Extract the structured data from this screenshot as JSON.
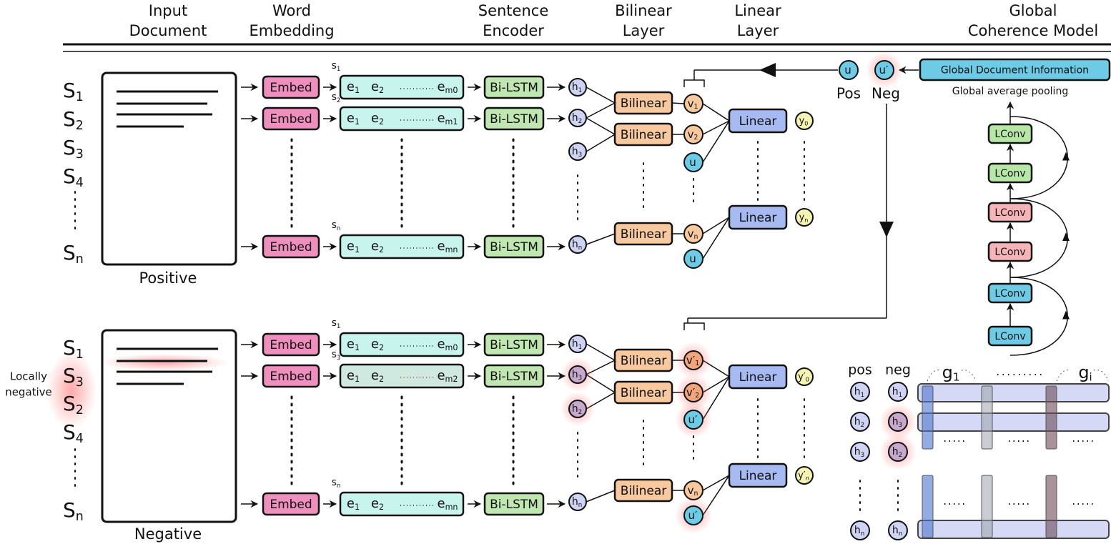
{
  "headers": [
    {
      "lines": [
        "Input",
        "Document"
      ]
    },
    {
      "lines": [
        "Word",
        "Embedding"
      ]
    },
    {
      "lines": [
        "Sentence",
        "Encoder"
      ]
    },
    {
      "lines": [
        "Bilinear",
        "Layer"
      ]
    },
    {
      "lines": [
        "Linear",
        "Layer"
      ]
    },
    {
      "lines": [
        "Global",
        "Coherence Model"
      ]
    }
  ],
  "colors": {
    "embed": "#ee8fbd",
    "sequence": "#c8f4ee",
    "bilstm": "#c0e6b1",
    "hidden": "#cfd3f4",
    "bilinear": "#f8c99e",
    "v": "#f8c99e",
    "v_neg": "#f3a67b",
    "u": "#6ecbe6",
    "linear": "#a7b9f1",
    "y": "#f5f4b4",
    "h_neg": "#c6a9cd",
    "lconv_green": "#b6e7a7",
    "lconv_pink": "#f6b4b9",
    "lconv_blue": "#6ecbe6",
    "glow": "#ff7a7a"
  },
  "positive": {
    "label": "Positive",
    "sentences": [
      {
        "b": "S",
        "s": "1"
      },
      {
        "b": "S",
        "s": "2"
      },
      {
        "b": "S",
        "s": "3"
      },
      {
        "b": "S",
        "s": "4"
      },
      {
        "b": "S",
        "s": "n"
      }
    ],
    "rows": [
      {
        "s": {
          "b": "s",
          "s": "1"
        },
        "embed": "Embed",
        "e1": {
          "b": "e",
          "s": "1"
        },
        "e2": {
          "b": "e",
          "s": "2"
        },
        "em": {
          "b": "e",
          "s": "m0"
        },
        "lstm": "Bi-LSTM",
        "h": {
          "b": "h",
          "s": "1"
        }
      },
      {
        "s": {
          "b": "s",
          "s": "2"
        },
        "embed": "Embed",
        "e1": {
          "b": "e",
          "s": "1"
        },
        "e2": {
          "b": "e",
          "s": "2"
        },
        "em": {
          "b": "e",
          "s": "m1"
        },
        "lstm": "Bi-LSTM",
        "h": {
          "b": "h",
          "s": "2"
        }
      },
      {
        "s": {
          "b": "s",
          "s": "n"
        },
        "embed": "Embed",
        "e1": {
          "b": "e",
          "s": "1"
        },
        "e2": {
          "b": "e",
          "s": "2"
        },
        "em": {
          "b": "e",
          "s": "mn"
        },
        "lstm": "Bi-LSTM",
        "h": {
          "b": "h",
          "s": "n"
        }
      }
    ],
    "extra_h": {
      "b": "h",
      "s": "3"
    },
    "bilinear": "Bilinear",
    "v": [
      {
        "b": "v",
        "s": "1"
      },
      {
        "b": "v",
        "s": "2"
      },
      {
        "b": "u",
        "s": ""
      },
      {
        "b": "v",
        "s": "n"
      },
      {
        "b": "u",
        "s": ""
      }
    ],
    "linear": "Linear",
    "y": [
      {
        "b": "y",
        "s": "0"
      },
      {
        "b": "y",
        "s": "n"
      }
    ]
  },
  "negative": {
    "label": "Negative",
    "side_label": [
      "Locally",
      "negative"
    ],
    "sentences": [
      {
        "b": "S",
        "s": "1"
      },
      {
        "b": "S",
        "s": "3"
      },
      {
        "b": "S",
        "s": "2"
      },
      {
        "b": "S",
        "s": "4"
      },
      {
        "b": "S",
        "s": "n"
      }
    ],
    "rows": [
      {
        "s": {
          "b": "s",
          "s": "1"
        },
        "embed": "Embed",
        "e1": {
          "b": "e",
          "s": "1"
        },
        "e2": {
          "b": "e",
          "s": "2"
        },
        "em": {
          "b": "e",
          "s": "m0"
        },
        "lstm": "Bi-LSTM",
        "h": {
          "b": "h",
          "s": "1"
        }
      },
      {
        "s": {
          "b": "s",
          "s": "3"
        },
        "embed": "Embed",
        "e1": {
          "b": "e",
          "s": "1"
        },
        "e2": {
          "b": "e",
          "s": "2"
        },
        "em": {
          "b": "e",
          "s": "m2"
        },
        "lstm": "Bi-LSTM",
        "h": {
          "b": "h",
          "s": "3"
        }
      },
      {
        "s": {
          "b": "s",
          "s": "n"
        },
        "embed": "Embed",
        "e1": {
          "b": "e",
          "s": "1"
        },
        "e2": {
          "b": "e",
          "s": "2"
        },
        "em": {
          "b": "e",
          "s": "mn"
        },
        "lstm": "Bi-LSTM",
        "h": {
          "b": "h",
          "s": "n"
        }
      }
    ],
    "extra_h": {
      "b": "h",
      "s": "2"
    },
    "bilinear": "Bilinear",
    "v": [
      {
        "b": "v′",
        "s": "1"
      },
      {
        "b": "v′",
        "s": "2"
      },
      {
        "b": "u′",
        "s": ""
      },
      {
        "b": "v",
        "s": "n"
      },
      {
        "b": "u′",
        "s": ""
      }
    ],
    "linear": "Linear",
    "y": [
      {
        "b": "y′",
        "s": "0"
      },
      {
        "b": "y′",
        "s": "n"
      }
    ]
  },
  "global": {
    "info": "Global Document Information",
    "pooling": "Global average pooling",
    "pos_node": "u",
    "neg_node": "u′",
    "pos_label": "Pos",
    "neg_label": "Neg",
    "lconv": [
      {
        "label": "LConv",
        "color": "lconv_green"
      },
      {
        "label": "LConv",
        "color": "lconv_green"
      },
      {
        "label": "LConv",
        "color": "lconv_pink"
      },
      {
        "label": "LConv",
        "color": "lconv_pink"
      },
      {
        "label": "LConv",
        "color": "lconv_blue"
      },
      {
        "label": "LConv",
        "color": "lconv_blue"
      }
    ],
    "pos_header": "pos",
    "neg_header": "neg",
    "pos_h": [
      {
        "b": "h",
        "s": "1"
      },
      {
        "b": "h",
        "s": "2"
      },
      {
        "b": "h",
        "s": "3"
      },
      {
        "b": "h",
        "s": "n"
      }
    ],
    "neg_h": [
      {
        "b": "h",
        "s": "1"
      },
      {
        "b": "h",
        "s": "3"
      },
      {
        "b": "h",
        "s": "2"
      },
      {
        "b": "h",
        "s": "n"
      }
    ],
    "groups": [
      {
        "b": "g",
        "s": "1"
      },
      {
        "b": "g",
        "s": "i"
      }
    ]
  }
}
